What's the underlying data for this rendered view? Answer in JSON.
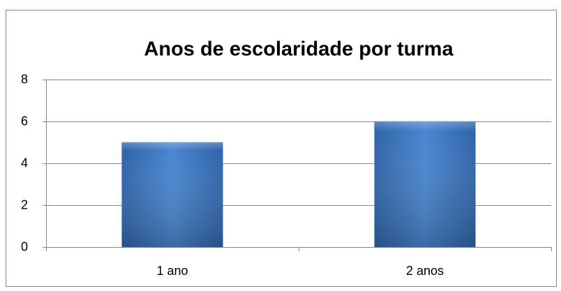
{
  "chart_data": {
    "type": "bar",
    "title": "Anos de escolaridade por turma",
    "categories": [
      "1 ano",
      "2 anos"
    ],
    "values": [
      5,
      6
    ],
    "color": "#4a86d0",
    "ylim": [
      0,
      8
    ],
    "yticks": [
      0,
      2,
      4,
      6,
      8
    ],
    "grid": true
  }
}
